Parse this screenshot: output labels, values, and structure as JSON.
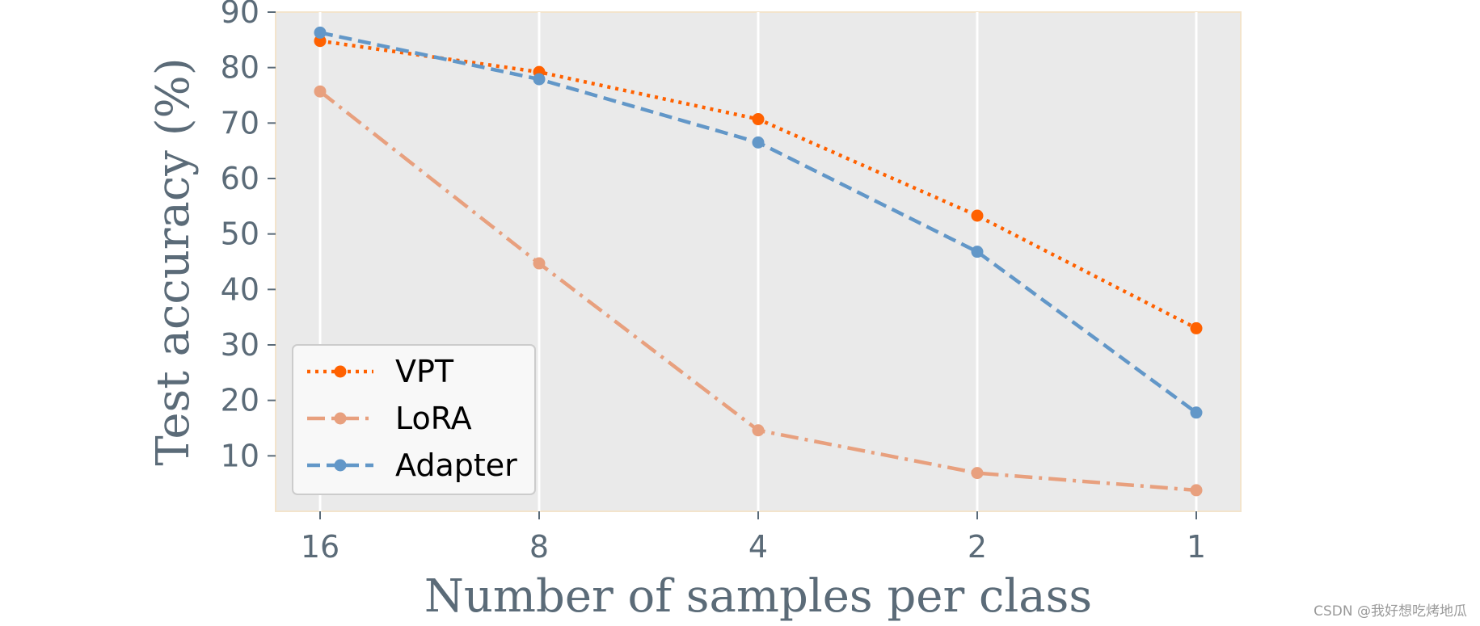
{
  "chart_data": {
    "type": "line",
    "title": "",
    "xlabel": "Number of samples per class",
    "ylabel": "Test accuracy (%)",
    "x": [
      "16",
      "8",
      "4",
      "2",
      "1"
    ],
    "x_scale": "log2 (reversed)",
    "ylim": [
      0,
      90
    ],
    "yticks": [
      10,
      20,
      30,
      40,
      50,
      60,
      70,
      80,
      90
    ],
    "grid": "vertical gridlines at x ticks",
    "legend": "lower-left",
    "series": [
      {
        "name": "VPT",
        "values": [
          84.8,
          79.2,
          70.7,
          53.3,
          33.0
        ],
        "color": "#ff6100",
        "linestyle": "dotted"
      },
      {
        "name": "LoRA",
        "values": [
          75.7,
          44.7,
          14.6,
          6.9,
          3.8
        ],
        "color": "#e8a07e",
        "linestyle": "dashdot"
      },
      {
        "name": "Adapter",
        "values": [
          86.3,
          77.9,
          66.5,
          46.8,
          17.8
        ],
        "color": "#6297c8",
        "linestyle": "dashed"
      }
    ]
  },
  "watermark": "CSDN @我好想吃烤地瓜"
}
